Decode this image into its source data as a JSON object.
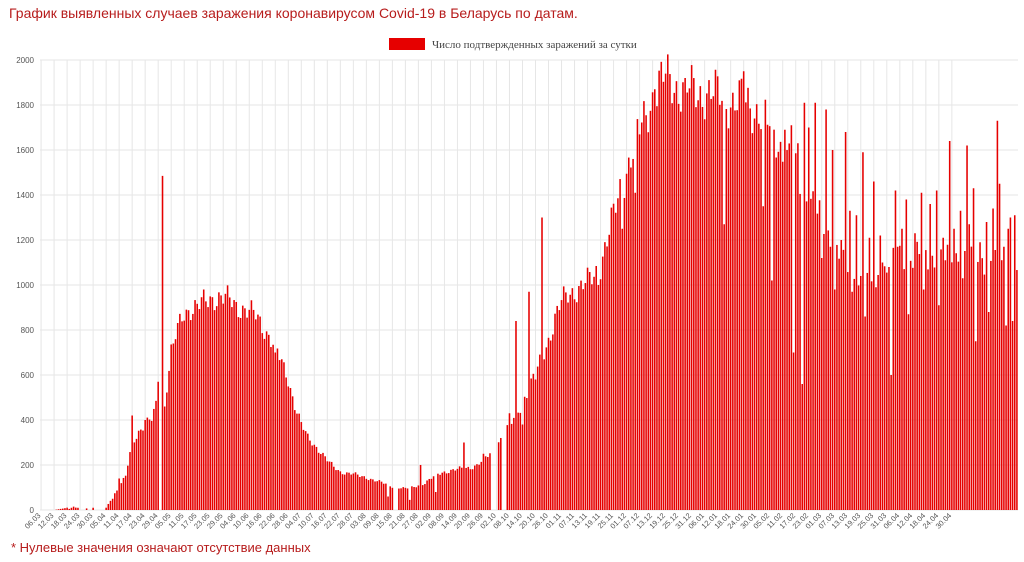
{
  "page": {
    "title": "График выявленных случаев заражения коронавирусом Covid-19 в Беларусь по датам.",
    "footnote": "* Нулевые значения означают отсутствие данных"
  },
  "colors": {
    "bar": "#e60000",
    "title": "#b71c1c",
    "grid": "#e6e6e6"
  },
  "chart_data": {
    "type": "bar",
    "title": "",
    "xlabel": "",
    "ylabel": "",
    "legend": {
      "position": "top",
      "entries": [
        "Число подтвержденных заражений за сутки"
      ]
    },
    "grid": true,
    "ylim": [
      0,
      2000
    ],
    "y_ticks": [
      0,
      200,
      400,
      600,
      800,
      1000,
      1200,
      1400,
      1600,
      1800,
      2000
    ],
    "x_tick_labels": [
      "06.03",
      "12.03",
      "18.03",
      "24.03",
      "30.03",
      "05.04",
      "11.04",
      "17.04",
      "23.04",
      "29.04",
      "05.05",
      "11.05",
      "17.05",
      "23.05",
      "29.05",
      "04.06",
      "10.06",
      "16.06",
      "22.06",
      "28.06",
      "04.07",
      "10.07",
      "16.07",
      "22.07",
      "28.07",
      "03.08",
      "09.08",
      "15.08",
      "21.08",
      "27.08",
      "02.09",
      "08.09",
      "14.09",
      "20.09",
      "26.09",
      "02.10",
      "08.10",
      "14.10",
      "20.10",
      "26.10",
      "01.11",
      "07.11",
      "13.11",
      "19.11",
      "25.11",
      "01.12",
      "07.12",
      "13.12",
      "19.12",
      "25.12",
      "31.12",
      "06.01",
      "12.01",
      "18.01",
      "24.01",
      "30.01",
      "05.02",
      "11.02",
      "17.02",
      "23.02",
      "01.03",
      "07.03",
      "13.03",
      "19.03",
      "25.03",
      "31.03",
      "06.04",
      "12.04",
      "18.04",
      "24.04",
      "30.04"
    ],
    "anchors": [
      [
        0,
        0
      ],
      [
        6,
        0
      ],
      [
        12,
        10
      ],
      [
        18,
        10
      ],
      [
        24,
        5
      ],
      [
        30,
        10
      ],
      [
        33,
        60
      ],
      [
        36,
        100
      ],
      [
        39,
        150
      ],
      [
        42,
        300
      ],
      [
        45,
        350
      ],
      [
        48,
        380
      ],
      [
        51,
        400
      ],
      [
        54,
        500
      ],
      [
        57,
        480
      ],
      [
        60,
        700
      ],
      [
        63,
        800
      ],
      [
        66,
        880
      ],
      [
        69,
        900
      ],
      [
        72,
        900
      ],
      [
        75,
        920
      ],
      [
        78,
        940
      ],
      [
        81,
        950
      ],
      [
        84,
        940
      ],
      [
        87,
        930
      ],
      [
        90,
        910
      ],
      [
        93,
        900
      ],
      [
        96,
        880
      ],
      [
        99,
        860
      ],
      [
        102,
        820
      ],
      [
        105,
        780
      ],
      [
        108,
        720
      ],
      [
        111,
        650
      ],
      [
        114,
        580
      ],
      [
        117,
        470
      ],
      [
        120,
        380
      ],
      [
        123,
        320
      ],
      [
        126,
        290
      ],
      [
        129,
        260
      ],
      [
        132,
        220
      ],
      [
        135,
        190
      ],
      [
        138,
        170
      ],
      [
        141,
        165
      ],
      [
        144,
        160
      ],
      [
        147,
        150
      ],
      [
        150,
        145
      ],
      [
        153,
        135
      ],
      [
        156,
        125
      ],
      [
        159,
        115
      ],
      [
        162,
        105
      ],
      [
        165,
        100
      ],
      [
        168,
        95
      ],
      [
        171,
        100
      ],
      [
        174,
        110
      ],
      [
        177,
        120
      ],
      [
        180,
        140
      ],
      [
        183,
        160
      ],
      [
        186,
        170
      ],
      [
        189,
        175
      ],
      [
        192,
        180
      ],
      [
        195,
        185
      ],
      [
        198,
        190
      ],
      [
        201,
        200
      ],
      [
        204,
        220
      ],
      [
        207,
        250
      ],
      [
        210,
        290
      ],
      [
        213,
        330
      ],
      [
        216,
        370
      ],
      [
        219,
        420
      ],
      [
        222,
        480
      ],
      [
        225,
        540
      ],
      [
        228,
        600
      ],
      [
        231,
        680
      ],
      [
        234,
        760
      ],
      [
        237,
        850
      ],
      [
        240,
        920
      ],
      [
        243,
        960
      ],
      [
        246,
        980
      ],
      [
        249,
        990
      ],
      [
        252,
        1010
      ],
      [
        255,
        1040
      ],
      [
        258,
        1100
      ],
      [
        261,
        1200
      ],
      [
        264,
        1300
      ],
      [
        267,
        1420
      ],
      [
        270,
        1520
      ],
      [
        273,
        1600
      ],
      [
        276,
        1680
      ],
      [
        279,
        1760
      ],
      [
        282,
        1840
      ],
      [
        285,
        1890
      ],
      [
        288,
        1920
      ],
      [
        291,
        1900
      ],
      [
        294,
        1880
      ],
      [
        297,
        1870
      ],
      [
        300,
        1860
      ],
      [
        303,
        1850
      ],
      [
        306,
        1860
      ],
      [
        309,
        1850
      ],
      [
        312,
        1840
      ],
      [
        315,
        1830
      ],
      [
        318,
        1820
      ],
      [
        321,
        1810
      ],
      [
        324,
        1820
      ],
      [
        327,
        1800
      ],
      [
        330,
        1780
      ],
      [
        333,
        1740
      ],
      [
        336,
        1700
      ],
      [
        339,
        1660
      ],
      [
        342,
        1600
      ],
      [
        345,
        1550
      ],
      [
        348,
        1500
      ],
      [
        351,
        1450
      ],
      [
        354,
        1400
      ],
      [
        357,
        1340
      ],
      [
        360,
        1280
      ],
      [
        363,
        1220
      ],
      [
        366,
        1160
      ],
      [
        369,
        1110
      ],
      [
        372,
        1070
      ],
      [
        375,
        1040
      ],
      [
        378,
        1020
      ],
      [
        381,
        1010
      ],
      [
        384,
        1020
      ],
      [
        387,
        1050
      ],
      [
        390,
        1080
      ],
      [
        393,
        1100
      ],
      [
        396,
        1120
      ],
      [
        399,
        1130
      ],
      [
        402,
        1140
      ],
      [
        405,
        1130
      ],
      [
        408,
        1110
      ],
      [
        411,
        1100
      ],
      [
        414,
        1110
      ],
      [
        417,
        1120
      ],
      [
        420,
        1120
      ]
    ],
    "spikes": [
      [
        13,
        5
      ],
      [
        15,
        15
      ],
      [
        20,
        12
      ],
      [
        24,
        10
      ],
      [
        33,
        50
      ],
      [
        36,
        140
      ],
      [
        42,
        420
      ],
      [
        48,
        400
      ],
      [
        54,
        570
      ],
      [
        56,
        1485
      ],
      [
        57,
        460
      ],
      [
        61,
        740
      ],
      [
        108,
        700
      ],
      [
        160,
        60
      ],
      [
        170,
        45
      ],
      [
        175,
        200
      ],
      [
        182,
        80
      ],
      [
        195,
        300
      ],
      [
        204,
        250
      ],
      [
        216,
        430
      ],
      [
        219,
        840
      ],
      [
        222,
        380
      ],
      [
        225,
        970
      ],
      [
        228,
        580
      ],
      [
        231,
        1300
      ],
      [
        257,
        1000
      ],
      [
        268,
        1250
      ],
      [
        274,
        1410
      ],
      [
        283,
        1870
      ],
      [
        297,
        1920
      ],
      [
        315,
        1270
      ],
      [
        324,
        1950
      ],
      [
        333,
        1350
      ],
      [
        337,
        1020
      ],
      [
        343,
        1690
      ],
      [
        346,
        1710
      ],
      [
        347,
        700
      ],
      [
        349,
        1630
      ],
      [
        351,
        560
      ],
      [
        352,
        1810
      ],
      [
        354,
        1700
      ],
      [
        357,
        1810
      ],
      [
        360,
        1120
      ],
      [
        362,
        1780
      ],
      [
        365,
        1600
      ],
      [
        366,
        980
      ],
      [
        369,
        1200
      ],
      [
        371,
        1680
      ],
      [
        373,
        1330
      ],
      [
        374,
        970
      ],
      [
        376,
        1310
      ],
      [
        379,
        1590
      ],
      [
        380,
        860
      ],
      [
        382,
        1210
      ],
      [
        384,
        1460
      ],
      [
        385,
        990
      ],
      [
        387,
        1220
      ],
      [
        388,
        1100
      ],
      [
        391,
        1080
      ],
      [
        392,
        600
      ],
      [
        394,
        1420
      ],
      [
        395,
        1170
      ],
      [
        397,
        1250
      ],
      [
        399,
        1380
      ],
      [
        400,
        870
      ],
      [
        403,
        1230
      ],
      [
        406,
        1410
      ],
      [
        407,
        980
      ],
      [
        410,
        1360
      ],
      [
        411,
        1130
      ],
      [
        413,
        1420
      ],
      [
        414,
        910
      ],
      [
        416,
        1210
      ],
      [
        419,
        1640
      ],
      [
        421,
        1250
      ],
      [
        424,
        1330
      ],
      [
        425,
        1030
      ],
      [
        427,
        1620
      ],
      [
        428,
        1270
      ],
      [
        430,
        1430
      ],
      [
        431,
        750
      ],
      [
        433,
        1190
      ],
      [
        436,
        1280
      ],
      [
        437,
        880
      ],
      [
        439,
        1340
      ],
      [
        441,
        1730
      ],
      [
        442,
        1450
      ],
      [
        444,
        1170
      ],
      [
        445,
        820
      ],
      [
        446,
        1250
      ],
      [
        447,
        1300
      ],
      [
        448,
        840
      ],
      [
        449,
        1310
      ]
    ],
    "missing_days": [
      18,
      19,
      20,
      22,
      23,
      25,
      26,
      27,
      28,
      29,
      55,
      163,
      164,
      208,
      209,
      210,
      213,
      214
    ],
    "total_days": 451
  }
}
